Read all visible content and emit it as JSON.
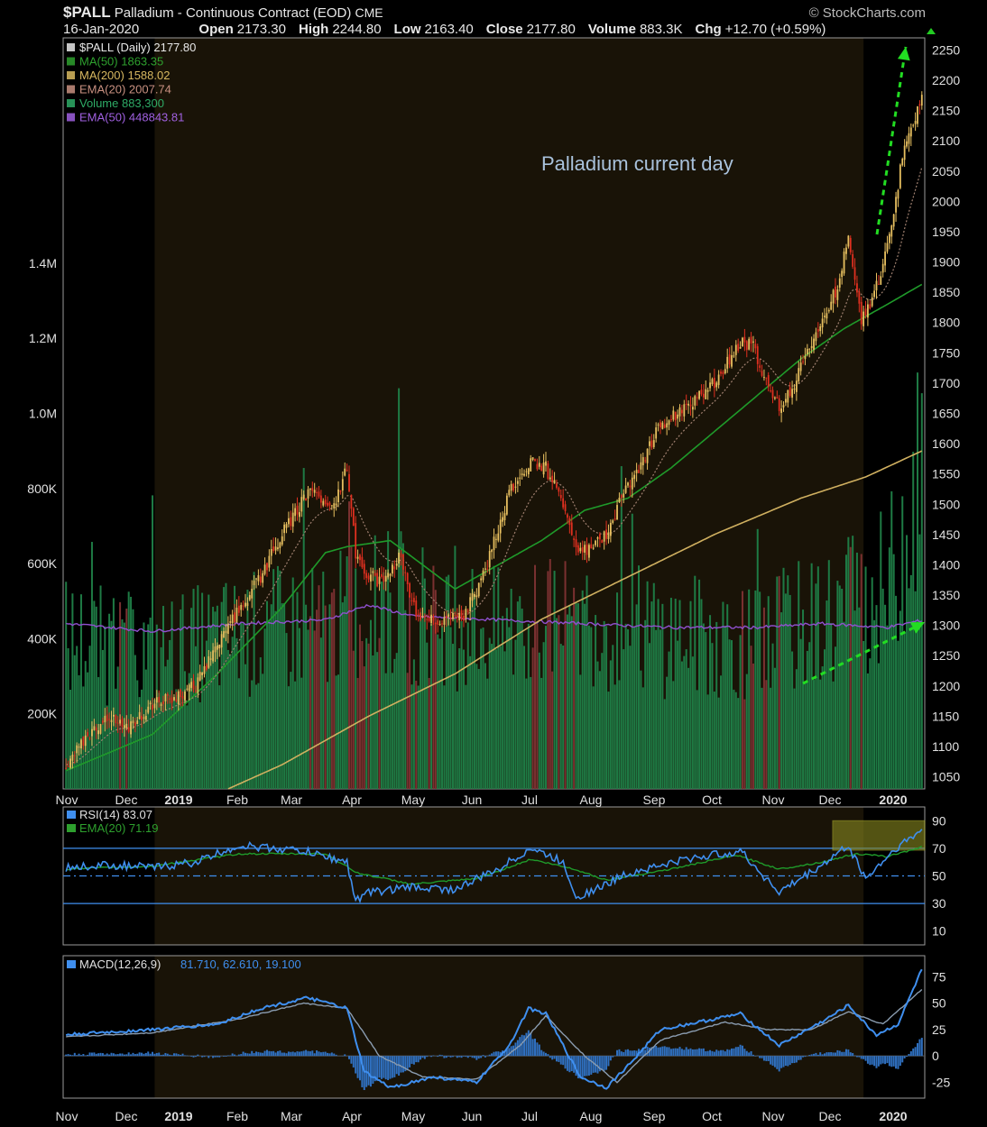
{
  "header": {
    "symbol": "$PALL",
    "name": "Palladium - Continuous Contract (EOD)",
    "exchange": "CME",
    "brand": "© StockCharts.com",
    "date": "16-Jan-2020",
    "ohlc": [
      {
        "label": "Open",
        "value": "2173.30"
      },
      {
        "label": "High",
        "value": "2244.80"
      },
      {
        "label": "Low",
        "value": "2163.40"
      },
      {
        "label": "Close",
        "value": "2177.80"
      },
      {
        "label": "Volume",
        "value": "883.3K"
      },
      {
        "label": "Chg",
        "value": "+12.70 (+0.59%)"
      }
    ]
  },
  "annotation": "Palladium current day",
  "legend": [
    {
      "text": "$PALL (Daily) 2177.80",
      "color": "#e8e8e8"
    },
    {
      "text": "MA(50) 1863.35",
      "color": "#2ea02e"
    },
    {
      "text": "MA(200) 1588.02",
      "color": "#d8b860"
    },
    {
      "text": "EMA(20) 2007.74",
      "color": "#c89080"
    },
    {
      "text": "Volume 883,300",
      "color": "#2eaa66"
    },
    {
      "text": "EMA(50) 448843.81",
      "color": "#a060e0"
    }
  ],
  "rsi_legend": [
    {
      "text": "RSI(14) 83.07",
      "color": "#e0e0e0"
    },
    {
      "text": "EMA(20) 71.19",
      "color": "#2ea02e"
    }
  ],
  "macd_legend": {
    "label": "MACD(12,26,9)",
    "values": "81.710, 62.610, 19.100",
    "color": "#3f8fef"
  },
  "colors": {
    "up": "#e8c060",
    "down": "#e03020",
    "shade": "#191307",
    "ma50": "#1f9a2a",
    "ma200": "#d0b060",
    "ema20": "#a08070",
    "volume": "#1e7a44",
    "volume_down": "#7a3030",
    "vol_ema": "#9050d0",
    "rsi": "#3f8fef",
    "macd": "#3f8fef",
    "arrow": "#22dd22"
  },
  "months": [
    "Nov",
    "Dec",
    "2019",
    "Feb",
    "Mar",
    "Apr",
    "May",
    "Jun",
    "Jul",
    "Aug",
    "Sep",
    "Oct",
    "Nov",
    "Dec",
    "2020"
  ],
  "chart_data": [
    {
      "type": "candlestick",
      "panel": "price",
      "ylim": [
        1030,
        2270
      ],
      "y_ticks": [
        1050,
        1100,
        1150,
        1200,
        1250,
        1300,
        1350,
        1400,
        1450,
        1500,
        1550,
        1600,
        1650,
        1700,
        1750,
        1800,
        1850,
        1900,
        1950,
        2000,
        2050,
        2100,
        2150,
        2200,
        2250
      ],
      "vol_ticks": [
        {
          "value": 200000,
          "label": "200K"
        },
        {
          "value": 400000,
          "label": "400K"
        },
        {
          "value": 600000,
          "label": "600K"
        },
        {
          "value": 800000,
          "label": "800K"
        },
        {
          "value": 1000000,
          "label": "1.0M"
        },
        {
          "value": 1200000,
          "label": "1.2M"
        },
        {
          "value": 1400000,
          "label": "1.4M"
        }
      ],
      "close_anchors": [
        [
          0,
          1070
        ],
        [
          10,
          1120
        ],
        [
          20,
          1150
        ],
        [
          28,
          1130
        ],
        [
          40,
          1170
        ],
        [
          50,
          1180
        ],
        [
          60,
          1200
        ],
        [
          75,
          1300
        ],
        [
          90,
          1380
        ],
        [
          100,
          1450
        ],
        [
          112,
          1520
        ],
        [
          124,
          1500
        ],
        [
          130,
          1560
        ],
        [
          134,
          1420
        ],
        [
          138,
          1390
        ],
        [
          146,
          1370
        ],
        [
          155,
          1420
        ],
        [
          160,
          1330
        ],
        [
          172,
          1300
        ],
        [
          185,
          1320
        ],
        [
          195,
          1400
        ],
        [
          205,
          1520
        ],
        [
          214,
          1570
        ],
        [
          222,
          1560
        ],
        [
          230,
          1500
        ],
        [
          236,
          1420
        ],
        [
          244,
          1430
        ],
        [
          252,
          1460
        ],
        [
          258,
          1520
        ],
        [
          265,
          1560
        ],
        [
          275,
          1630
        ],
        [
          290,
          1670
        ],
        [
          300,
          1700
        ],
        [
          312,
          1770
        ],
        [
          318,
          1760
        ],
        [
          324,
          1700
        ],
        [
          330,
          1660
        ],
        [
          337,
          1700
        ],
        [
          346,
          1780
        ],
        [
          356,
          1850
        ],
        [
          362,
          1940
        ],
        [
          368,
          1800
        ],
        [
          372,
          1830
        ],
        [
          378,
          1890
        ],
        [
          384,
          2000
        ],
        [
          388,
          2100
        ],
        [
          392,
          2120
        ],
        [
          396,
          2177
        ]
      ],
      "ma50_anchors": [
        [
          0,
          1060
        ],
        [
          40,
          1120
        ],
        [
          70,
          1220
        ],
        [
          100,
          1330
        ],
        [
          120,
          1420
        ],
        [
          130,
          1430
        ],
        [
          150,
          1440
        ],
        [
          180,
          1360
        ],
        [
          200,
          1400
        ],
        [
          220,
          1440
        ],
        [
          240,
          1490
        ],
        [
          260,
          1510
        ],
        [
          280,
          1560
        ],
        [
          300,
          1620
        ],
        [
          320,
          1680
        ],
        [
          340,
          1740
        ],
        [
          360,
          1790
        ],
        [
          380,
          1830
        ],
        [
          396,
          1863
        ]
      ],
      "ma200_anchors": [
        [
          75,
          1030
        ],
        [
          100,
          1070
        ],
        [
          140,
          1150
        ],
        [
          180,
          1220
        ],
        [
          220,
          1310
        ],
        [
          260,
          1380
        ],
        [
          300,
          1450
        ],
        [
          340,
          1510
        ],
        [
          370,
          1545
        ],
        [
          396,
          1588
        ]
      ],
      "volume_anchors": [
        [
          0,
          420000
        ],
        [
          40,
          380000
        ],
        [
          80,
          430000
        ],
        [
          120,
          460000
        ],
        [
          150,
          520000
        ],
        [
          200,
          440000
        ],
        [
          240,
          480000
        ],
        [
          280,
          430000
        ],
        [
          320,
          420000
        ],
        [
          350,
          470000
        ],
        [
          380,
          560000
        ],
        [
          396,
          883300
        ]
      ],
      "vol_ema_anchors": [
        [
          0,
          440000
        ],
        [
          40,
          420000
        ],
        [
          80,
          440000
        ],
        [
          120,
          450000
        ],
        [
          140,
          490000
        ],
        [
          160,
          460000
        ],
        [
          200,
          450000
        ],
        [
          240,
          440000
        ],
        [
          280,
          430000
        ],
        [
          320,
          430000
        ],
        [
          350,
          440000
        ],
        [
          380,
          430000
        ],
        [
          396,
          448843
        ]
      ]
    },
    {
      "type": "line",
      "panel": "rsi",
      "ylim": [
        0,
        100
      ],
      "y_ticks": [
        10,
        30,
        50,
        70,
        90
      ],
      "levels": [
        70,
        50,
        30
      ],
      "rsi_anchors": [
        [
          0,
          56
        ],
        [
          20,
          58
        ],
        [
          40,
          56
        ],
        [
          60,
          60
        ],
        [
          80,
          72
        ],
        [
          110,
          68
        ],
        [
          130,
          60
        ],
        [
          134,
          32
        ],
        [
          140,
          38
        ],
        [
          160,
          42
        ],
        [
          180,
          40
        ],
        [
          200,
          55
        ],
        [
          215,
          70
        ],
        [
          230,
          60
        ],
        [
          236,
          35
        ],
        [
          245,
          40
        ],
        [
          260,
          52
        ],
        [
          290,
          63
        ],
        [
          312,
          68
        ],
        [
          330,
          38
        ],
        [
          350,
          58
        ],
        [
          362,
          72
        ],
        [
          370,
          48
        ],
        [
          384,
          70
        ],
        [
          396,
          83
        ]
      ],
      "ema_anchors": [
        [
          0,
          55
        ],
        [
          40,
          57
        ],
        [
          80,
          66
        ],
        [
          120,
          66
        ],
        [
          135,
          52
        ],
        [
          160,
          44
        ],
        [
          190,
          48
        ],
        [
          215,
          62
        ],
        [
          235,
          55
        ],
        [
          250,
          47
        ],
        [
          280,
          55
        ],
        [
          310,
          65
        ],
        [
          330,
          55
        ],
        [
          350,
          60
        ],
        [
          365,
          66
        ],
        [
          380,
          64
        ],
        [
          396,
          71
        ]
      ]
    },
    {
      "type": "line",
      "panel": "macd",
      "ylim": [
        -40,
        95
      ],
      "y_ticks": [
        -25,
        0,
        25,
        50,
        75
      ],
      "macd_anchors": [
        [
          0,
          20
        ],
        [
          40,
          25
        ],
        [
          70,
          30
        ],
        [
          90,
          45
        ],
        [
          112,
          55
        ],
        [
          130,
          45
        ],
        [
          138,
          -15
        ],
        [
          150,
          -30
        ],
        [
          170,
          -20
        ],
        [
          190,
          -25
        ],
        [
          205,
          10
        ],
        [
          214,
          45
        ],
        [
          222,
          40
        ],
        [
          238,
          -20
        ],
        [
          250,
          -30
        ],
        [
          262,
          -5
        ],
        [
          275,
          25
        ],
        [
          300,
          35
        ],
        [
          312,
          40
        ],
        [
          330,
          10
        ],
        [
          352,
          35
        ],
        [
          362,
          48
        ],
        [
          370,
          30
        ],
        [
          375,
          20
        ],
        [
          385,
          30
        ],
        [
          396,
          82
        ]
      ],
      "signal_anchors": [
        [
          0,
          18
        ],
        [
          40,
          22
        ],
        [
          80,
          35
        ],
        [
          110,
          50
        ],
        [
          130,
          45
        ],
        [
          145,
          0
        ],
        [
          165,
          -20
        ],
        [
          190,
          -22
        ],
        [
          210,
          10
        ],
        [
          222,
          38
        ],
        [
          240,
          0
        ],
        [
          255,
          -25
        ],
        [
          275,
          15
        ],
        [
          305,
          32
        ],
        [
          325,
          25
        ],
        [
          345,
          25
        ],
        [
          362,
          42
        ],
        [
          378,
          30
        ],
        [
          396,
          63
        ]
      ]
    }
  ]
}
